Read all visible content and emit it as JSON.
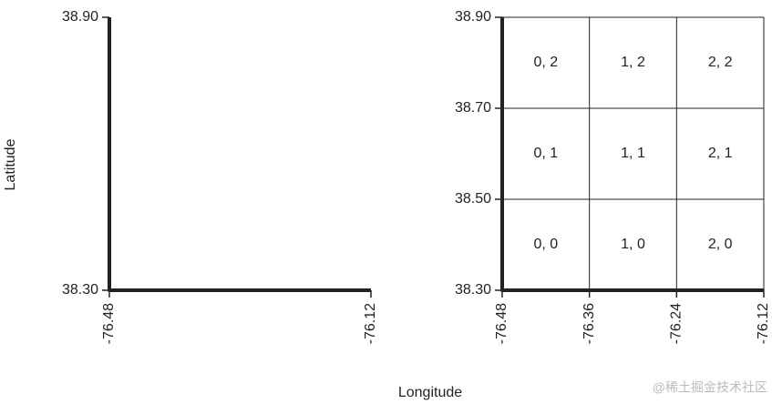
{
  "chart_data": [
    {
      "type": "axes",
      "ylabel": "Latitude",
      "xlim": [
        -76.48,
        -76.12
      ],
      "xticks": [
        -76.48,
        -76.12
      ],
      "ylim": [
        38.3,
        38.9
      ],
      "yticks": [
        {
          "value": 38.3,
          "label": "38.30"
        },
        {
          "value": 38.9,
          "label": "38.90"
        }
      ],
      "grid": false
    },
    {
      "type": "grid",
      "xlabel": "Longitude",
      "xlim": [
        -76.48,
        -76.12
      ],
      "xticks": [
        -76.48,
        -76.36,
        -76.24,
        -76.12
      ],
      "ylim": [
        38.3,
        38.9
      ],
      "yticks": [
        {
          "value": 38.3,
          "label": "38.30"
        },
        {
          "value": 38.5,
          "label": "38.50"
        },
        {
          "value": 38.7,
          "label": "38.70"
        },
        {
          "value": 38.9,
          "label": "38.90"
        }
      ],
      "grid": true,
      "annotations": [
        "0, 2",
        "1, 2",
        "2, 2",
        "0, 1",
        "1, 1",
        "2, 1",
        "0, 0",
        "1, 0",
        "2, 0"
      ]
    }
  ],
  "watermark": "@稀土掘金技术社区"
}
